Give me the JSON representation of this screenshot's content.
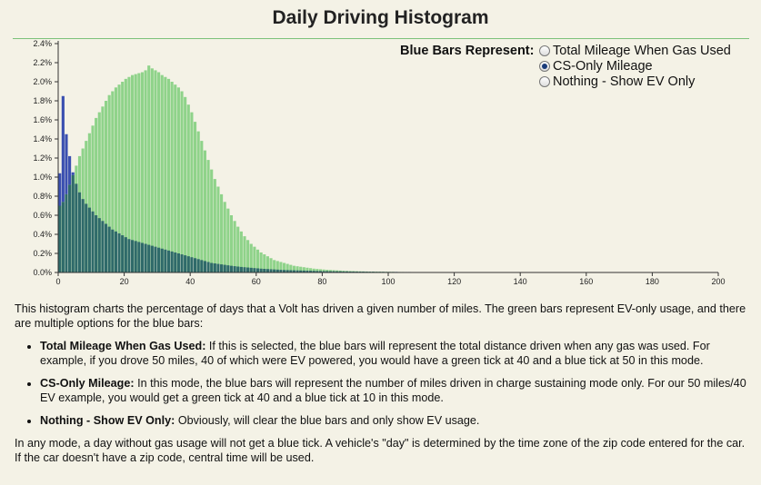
{
  "title": "Daily Driving Histogram",
  "controls": {
    "label": "Blue Bars Represent:",
    "options": [
      {
        "label": "Total Mileage When Gas Used",
        "selected": false
      },
      {
        "label": "CS-Only Mileage",
        "selected": true
      },
      {
        "label": "Nothing - Show EV Only",
        "selected": false
      }
    ]
  },
  "description": {
    "intro": "This histogram charts the percentage of days that a Volt has driven a given number of miles. The green bars represent EV-only usage, and there are multiple options for the blue bars:",
    "bullets": [
      {
        "term": "Total Mileage When Gas Used:",
        "text": " If this is selected, the blue bars will represent the total distance driven when any gas was used. For example, if you drove 50 miles, 40 of which were EV powered, you would have a green tick at 40 and a blue tick at 50 in this mode."
      },
      {
        "term": "CS-Only Mileage:",
        "text": " In this mode, the blue bars will represent the number of miles driven in charge sustaining mode only. For our 50 miles/40 EV example, you would get a green tick at 40 and a blue tick at 10 in this mode."
      },
      {
        "term": "Nothing - Show EV Only:",
        "text": " Obviously, will clear the blue bars and only show EV usage."
      }
    ],
    "footer": "In any mode, a day without gas usage will not get a blue tick. A vehicle's \"day\" is determined by the time zone of the zip code entered for the car. If the car doesn't have a zip code, central time will be used."
  },
  "chart_data": {
    "type": "bar",
    "title": "Daily Driving Histogram",
    "xlabel": "",
    "ylabel": "",
    "xlim": [
      0,
      200
    ],
    "ylim": [
      0,
      2.4
    ],
    "x_ticks": [
      0,
      20,
      40,
      60,
      80,
      100,
      120,
      140,
      160,
      180,
      200
    ],
    "y_ticks": [
      "0.0%",
      "0.2%",
      "0.4%",
      "0.6%",
      "0.8%",
      "1.0%",
      "1.2%",
      "1.4%",
      "1.6%",
      "1.8%",
      "2.0%",
      "2.2%",
      "2.4%"
    ],
    "colors": {
      "ev": "#8fd38a",
      "cs": "#3a4fb0",
      "overlap": "#2f6a6a"
    },
    "series": [
      {
        "name": "EV-only",
        "x": [
          1,
          2,
          3,
          4,
          5,
          6,
          7,
          8,
          9,
          10,
          11,
          12,
          13,
          14,
          15,
          16,
          17,
          18,
          19,
          20,
          21,
          22,
          23,
          24,
          25,
          26,
          27,
          28,
          29,
          30,
          31,
          32,
          33,
          34,
          35,
          36,
          37,
          38,
          39,
          40,
          41,
          42,
          43,
          44,
          45,
          46,
          47,
          48,
          49,
          50,
          51,
          52,
          53,
          54,
          55,
          56,
          57,
          58,
          59,
          60,
          61,
          62,
          63,
          64,
          65,
          66,
          67,
          68,
          69,
          70,
          71,
          72,
          73,
          74,
          75,
          76,
          77,
          78,
          79,
          80,
          81,
          82,
          83,
          84,
          85,
          86,
          87,
          88,
          89,
          90,
          91,
          92,
          93,
          94,
          95,
          96,
          97,
          98,
          99,
          100,
          101,
          102,
          103,
          104,
          105,
          106,
          107,
          108,
          109,
          110,
          111,
          112,
          113,
          114,
          115,
          116,
          117,
          118,
          119,
          120
        ],
        "values": [
          0.7,
          0.74,
          0.82,
          0.92,
          1.02,
          1.12,
          1.22,
          1.3,
          1.38,
          1.46,
          1.54,
          1.62,
          1.68,
          1.74,
          1.8,
          1.86,
          1.9,
          1.94,
          1.97,
          2.0,
          2.03,
          2.05,
          2.07,
          2.08,
          2.09,
          2.1,
          2.12,
          2.17,
          2.14,
          2.12,
          2.1,
          2.07,
          2.05,
          2.03,
          2.0,
          1.97,
          1.94,
          1.9,
          1.84,
          1.76,
          1.68,
          1.58,
          1.48,
          1.38,
          1.28,
          1.18,
          1.08,
          0.98,
          0.9,
          0.82,
          0.74,
          0.67,
          0.6,
          0.54,
          0.48,
          0.43,
          0.38,
          0.34,
          0.3,
          0.27,
          0.24,
          0.21,
          0.19,
          0.17,
          0.15,
          0.13,
          0.12,
          0.11,
          0.1,
          0.09,
          0.08,
          0.07,
          0.065,
          0.06,
          0.055,
          0.05,
          0.045,
          0.04,
          0.037,
          0.034,
          0.031,
          0.028,
          0.026,
          0.024,
          0.022,
          0.02,
          0.018,
          0.016,
          0.015,
          0.014,
          0.013,
          0.012,
          0.011,
          0.01,
          0.009,
          0.009,
          0.008,
          0.008,
          0.007,
          0.007,
          0.006,
          0.006,
          0.005,
          0.005,
          0.005,
          0.004,
          0.004,
          0.004,
          0.004,
          0.003,
          0.003,
          0.003,
          0.003,
          0.003,
          0.002,
          0.002,
          0.002,
          0.002,
          0.002,
          0.002
        ]
      },
      {
        "name": "CS-only",
        "x": [
          1,
          2,
          3,
          4,
          5,
          6,
          7,
          8,
          9,
          10,
          11,
          12,
          13,
          14,
          15,
          16,
          17,
          18,
          19,
          20,
          21,
          22,
          23,
          24,
          25,
          26,
          27,
          28,
          29,
          30,
          31,
          32,
          33,
          34,
          35,
          36,
          37,
          38,
          39,
          40,
          41,
          42,
          43,
          44,
          45,
          46,
          47,
          48,
          49,
          50,
          51,
          52,
          53,
          54,
          55,
          56,
          57,
          58,
          59,
          60,
          61,
          62,
          63,
          64,
          65,
          66,
          67,
          68,
          69,
          70,
          71,
          72,
          73,
          74,
          75,
          76,
          77,
          78,
          79,
          80,
          81,
          82,
          83,
          84,
          85,
          86,
          87,
          88,
          89,
          90,
          91,
          92,
          93,
          94,
          95,
          96,
          97,
          98,
          99,
          100,
          101,
          102,
          103,
          104,
          105,
          106,
          107,
          108,
          109,
          110,
          111,
          112,
          113,
          114,
          115,
          116,
          117,
          118,
          119,
          120
        ],
        "values": [
          1.04,
          1.85,
          1.45,
          1.22,
          1.05,
          0.93,
          0.84,
          0.77,
          0.72,
          0.68,
          0.64,
          0.6,
          0.57,
          0.54,
          0.51,
          0.48,
          0.45,
          0.43,
          0.41,
          0.39,
          0.37,
          0.35,
          0.34,
          0.33,
          0.32,
          0.31,
          0.3,
          0.29,
          0.28,
          0.27,
          0.26,
          0.25,
          0.24,
          0.23,
          0.22,
          0.21,
          0.2,
          0.19,
          0.18,
          0.17,
          0.16,
          0.15,
          0.14,
          0.13,
          0.12,
          0.11,
          0.1,
          0.095,
          0.09,
          0.085,
          0.08,
          0.075,
          0.07,
          0.066,
          0.062,
          0.058,
          0.055,
          0.052,
          0.049,
          0.046,
          0.043,
          0.04,
          0.038,
          0.036,
          0.034,
          0.032,
          0.03,
          0.028,
          0.026,
          0.025,
          0.024,
          0.023,
          0.022,
          0.021,
          0.02,
          0.019,
          0.018,
          0.017,
          0.016,
          0.015,
          0.014,
          0.014,
          0.013,
          0.013,
          0.012,
          0.012,
          0.011,
          0.011,
          0.01,
          0.01,
          0.009,
          0.009,
          0.009,
          0.008,
          0.008,
          0.008,
          0.007,
          0.007,
          0.007,
          0.006,
          0.006,
          0.006,
          0.006,
          0.005,
          0.005,
          0.005,
          0.005,
          0.004,
          0.004,
          0.004,
          0.004,
          0.004,
          0.003,
          0.003,
          0.003,
          0.003,
          0.003,
          0.003,
          0.003,
          0.003
        ]
      }
    ],
    "grid": false,
    "legend": "none"
  }
}
